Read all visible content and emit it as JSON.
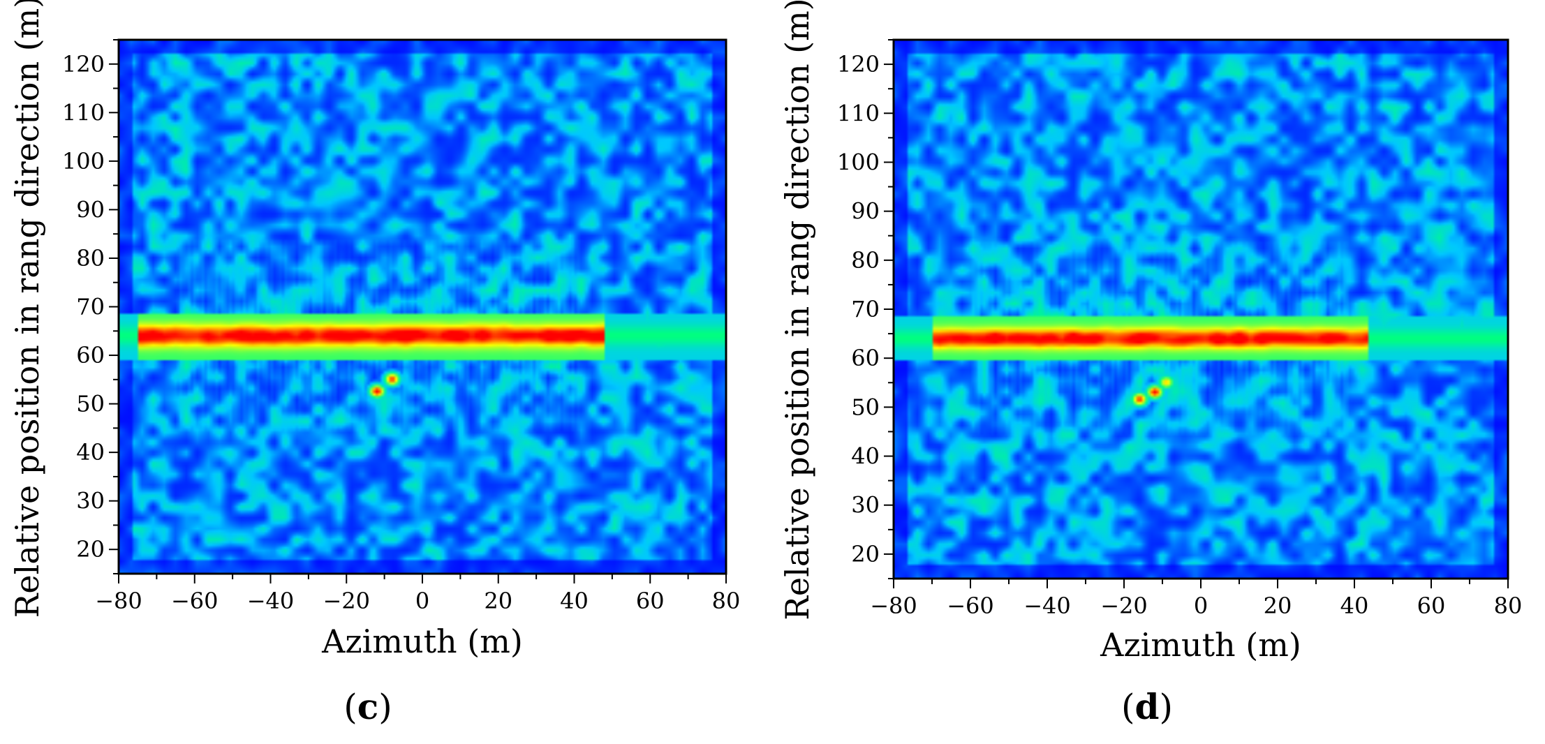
{
  "panels": [
    {
      "label_open": "(",
      "label_letter": "c",
      "label_close": ")",
      "xlabel": "Azimuth (m)",
      "ylabel": "Relative position in rang direction (m)"
    },
    {
      "label_open": "(",
      "label_letter": "d",
      "label_close": ")",
      "xlabel": "Azimuth (m)",
      "ylabel": "Relative position in rang direction (m)"
    }
  ],
  "chart_data": [
    {
      "type": "heatmap",
      "title": "",
      "panel": "(c)",
      "xlabel": "Azimuth (m)",
      "ylabel": "Relative position in rang direction (m)",
      "xlim": [
        -80,
        80
      ],
      "ylim": [
        15,
        125
      ],
      "x_ticks": [
        -80,
        -60,
        -40,
        -20,
        0,
        20,
        40,
        60,
        80
      ],
      "y_ticks": [
        20,
        30,
        40,
        50,
        60,
        70,
        80,
        90,
        100,
        110,
        120
      ],
      "colormap": [
        "#0000ff",
        "#00c8ff",
        "#00ff80",
        "#ffff00",
        "#ff0000"
      ],
      "strong_return_band": {
        "azimuth_range": [
          -75,
          48
        ],
        "range_center": 64,
        "range_halfwidth": 2.2
      },
      "hotspots": [
        {
          "x": -12,
          "y": 52.5,
          "intensity": 1.0
        },
        {
          "x": -8,
          "y": 55,
          "intensity": 0.95
        }
      ],
      "grid": false,
      "legend": "none"
    },
    {
      "type": "heatmap",
      "title": "",
      "panel": "(d)",
      "xlabel": "Azimuth (m)",
      "ylabel": "Relative position in rang direction (m)",
      "xlim": [
        -80,
        80
      ],
      "ylim": [
        15,
        125
      ],
      "x_ticks": [
        -80,
        -60,
        -40,
        -20,
        0,
        20,
        40,
        60,
        80
      ],
      "y_ticks": [
        20,
        30,
        40,
        50,
        60,
        70,
        80,
        90,
        100,
        110,
        120
      ],
      "colormap": [
        "#0000ff",
        "#00c8ff",
        "#00ff80",
        "#ffff00",
        "#ff0000"
      ],
      "strong_return_band": {
        "azimuth_range": [
          -70,
          44
        ],
        "range_center": 64,
        "range_halfwidth": 2.0
      },
      "hotspots": [
        {
          "x": -16,
          "y": 51.5,
          "intensity": 0.95
        },
        {
          "x": -12,
          "y": 53,
          "intensity": 1.0
        },
        {
          "x": -9,
          "y": 55,
          "intensity": 0.8
        }
      ],
      "grid": false,
      "legend": "none"
    }
  ]
}
